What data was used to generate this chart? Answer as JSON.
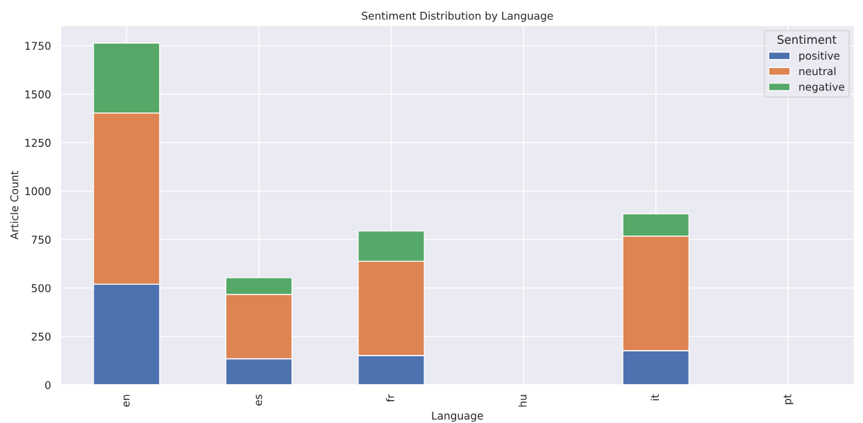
{
  "chart_data": {
    "type": "bar",
    "title": "Sentiment Distribution by Language",
    "xlabel": "Language",
    "ylabel": "Article Count",
    "legend_title": "Sentiment",
    "categories": [
      "en",
      "es",
      "fr",
      "hu",
      "it",
      "pt"
    ],
    "series": [
      {
        "name": "positive",
        "color": "#4c72b0",
        "values": [
          520,
          135,
          152,
          0,
          177,
          0
        ]
      },
      {
        "name": "neutral",
        "color": "#dd8452",
        "values": [
          883,
          332,
          486,
          0,
          591,
          0
        ]
      },
      {
        "name": "negative",
        "color": "#55a868",
        "values": [
          361,
          86,
          156,
          0,
          115,
          0
        ]
      }
    ],
    "stacked": true,
    "ylim": [
      0,
      1855
    ],
    "yticks": [
      0,
      250,
      500,
      750,
      1000,
      1250,
      1500,
      1750
    ],
    "grid": true,
    "legend": "top right"
  }
}
